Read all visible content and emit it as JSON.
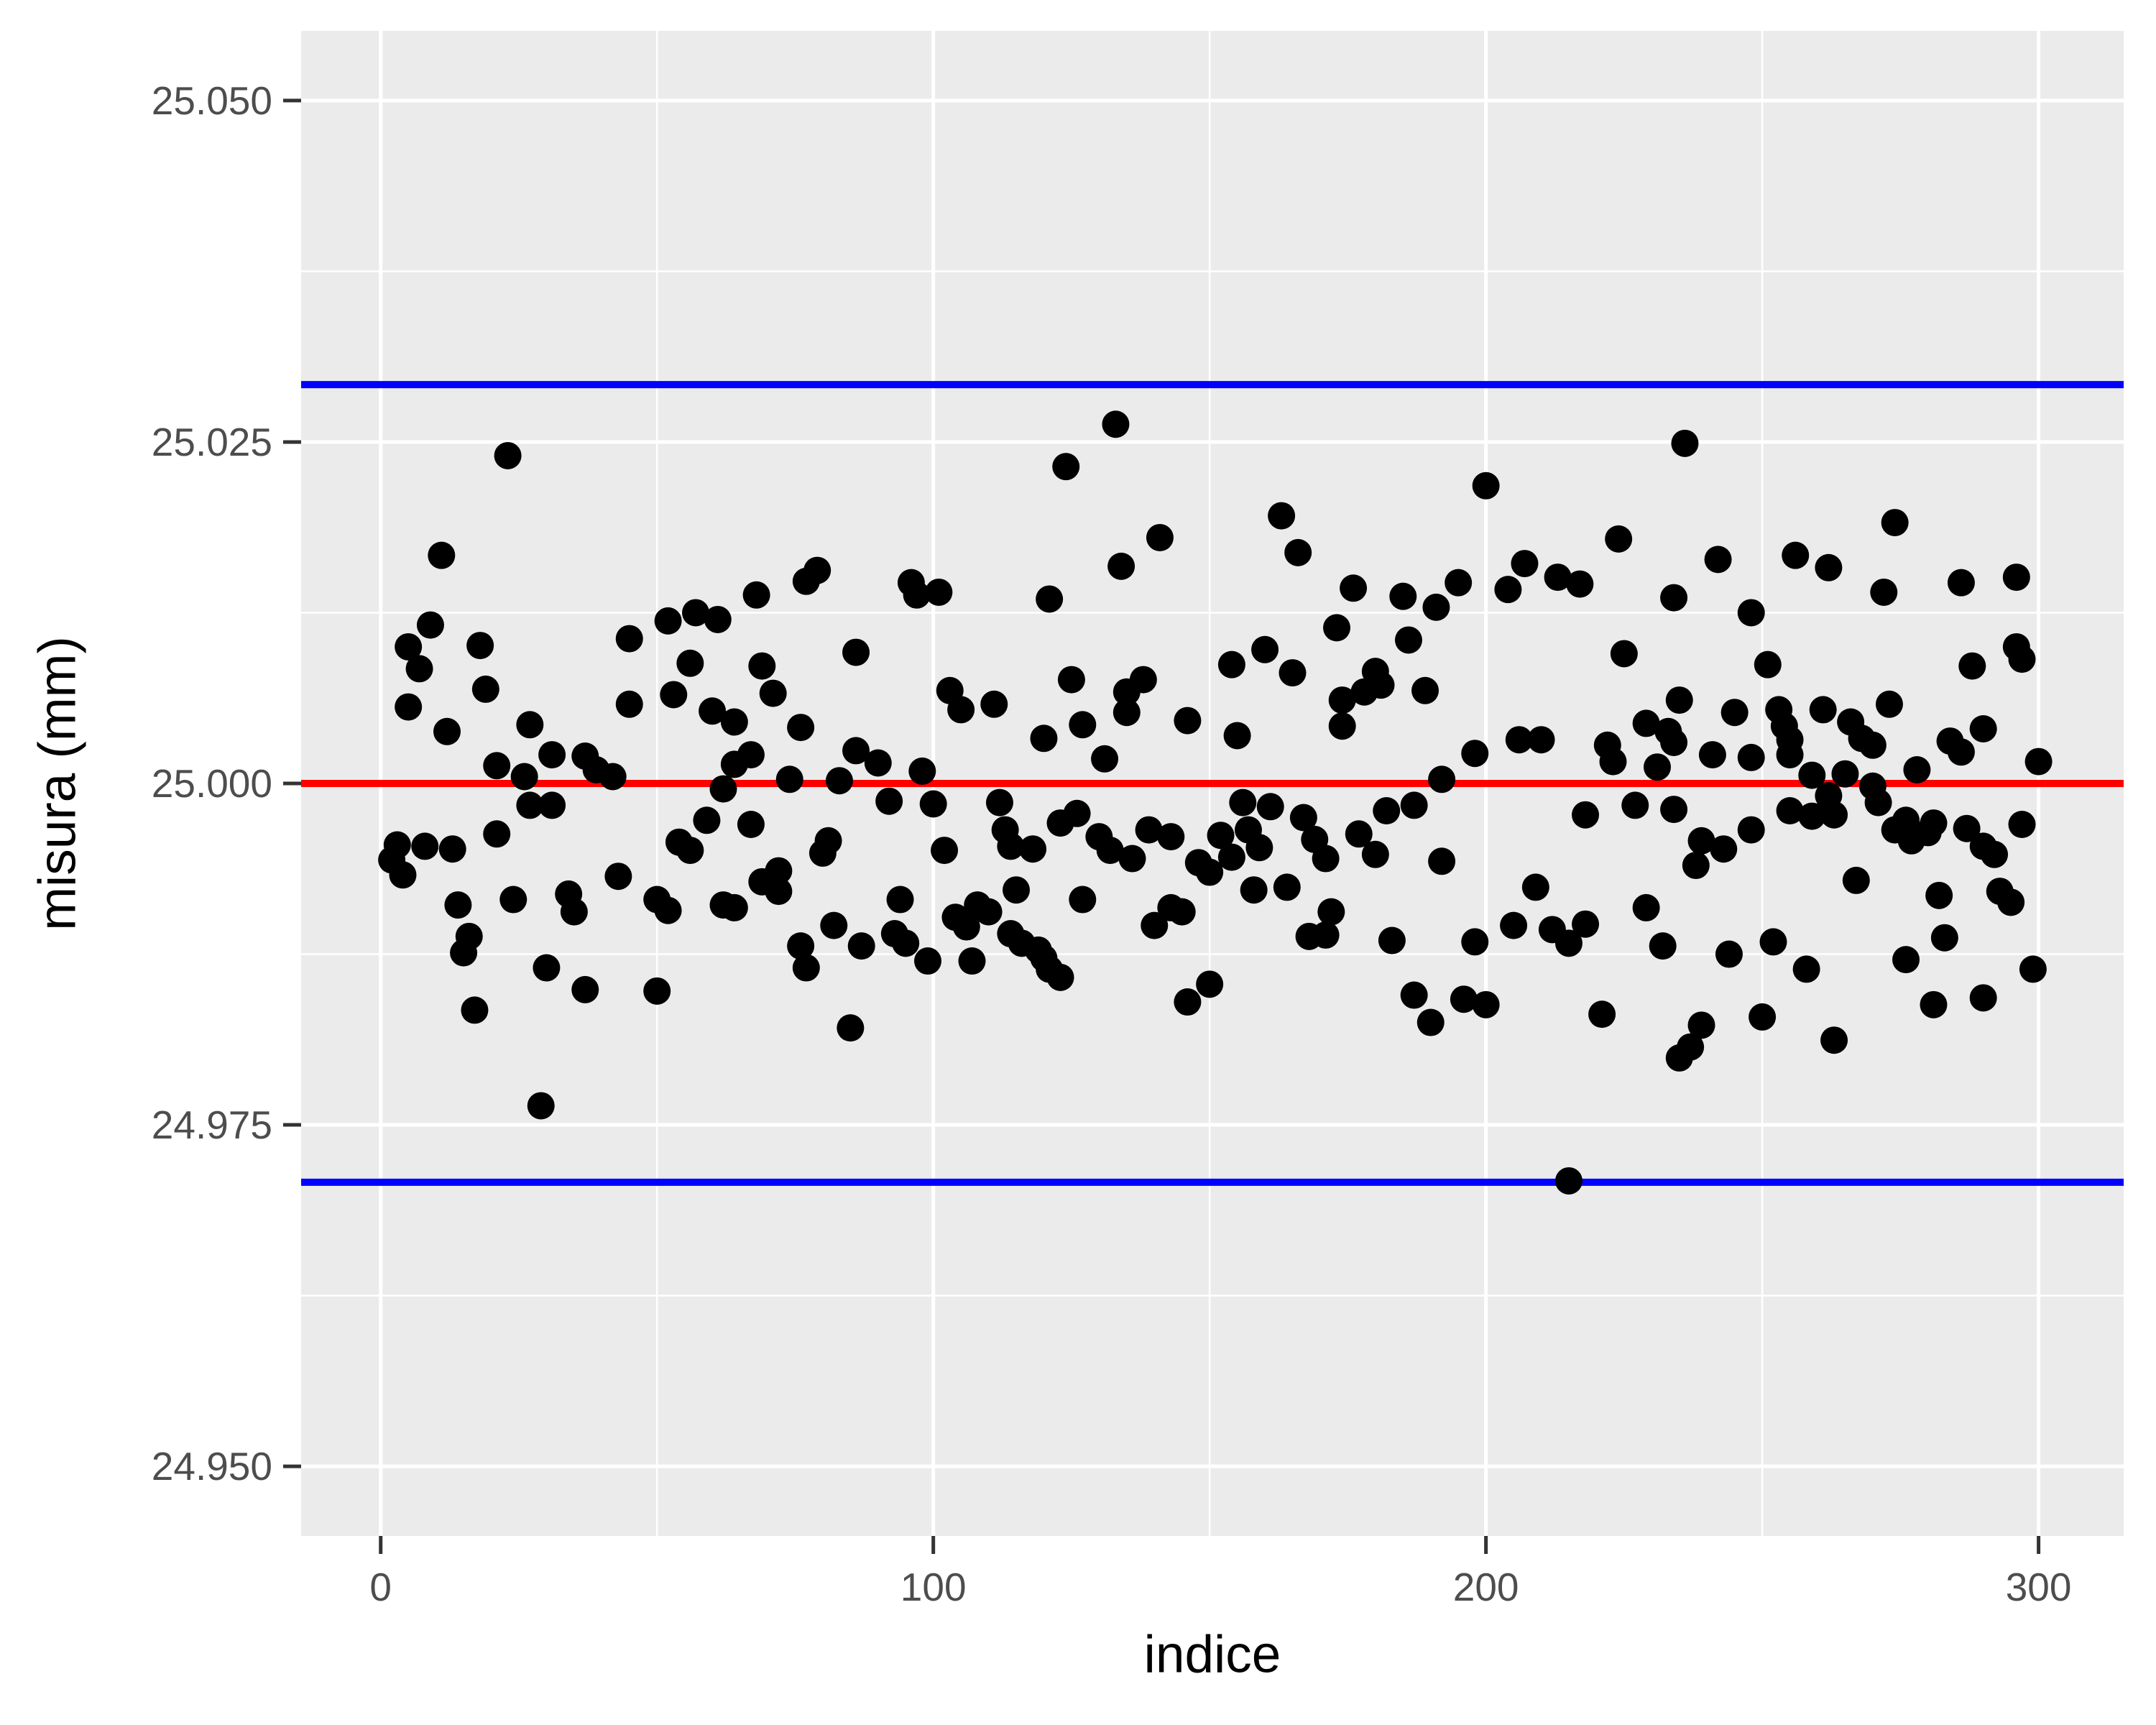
{
  "chart_data": {
    "type": "scatter",
    "title": "",
    "xlabel": "indice",
    "ylabel": "misura (mm)",
    "grid": "on",
    "legend": "none",
    "panel_background": "#EBEBEB",
    "grid_color": "#FFFFFF",
    "tick_color": "#333333",
    "tick_label_color": "#4D4D4D",
    "point_color": "#000000",
    "xlim": [
      -14.4,
      315.4
    ],
    "ylim": [
      24.9449,
      25.0551
    ],
    "x_major_ticks": [
      0,
      100,
      200,
      300
    ],
    "x_major_labels": [
      "0",
      "100",
      "200",
      "300"
    ],
    "x_minor_ticks": [
      50,
      150,
      250
    ],
    "y_major_ticks": [
      24.95,
      24.975,
      25.0,
      25.025,
      25.05
    ],
    "y_major_labels": [
      "24.950",
      "24.975",
      "25.000",
      "25.025",
      "25.050"
    ],
    "y_minor_ticks": [
      24.9625,
      24.9875,
      25.0125,
      25.0375
    ],
    "reference_lines": [
      {
        "name": "center-line",
        "value": 25.0,
        "color": "#FF0000"
      },
      {
        "name": "upper-control-limit",
        "value": 25.0292,
        "color": "#0000FF"
      },
      {
        "name": "lower-control-limit",
        "value": 24.9708,
        "color": "#0000FF"
      }
    ],
    "points": [
      [
        23,
        25.024
      ],
      [
        11,
        25.0167
      ],
      [
        9,
        25.0116
      ],
      [
        5,
        25.01
      ],
      [
        7,
        25.0084
      ],
      [
        18,
        25.0101
      ],
      [
        19,
        25.0069
      ],
      [
        5,
        25.0056
      ],
      [
        12,
        25.0038
      ],
      [
        27,
        25.0043
      ],
      [
        31,
        25.0021
      ],
      [
        37,
        25.002
      ],
      [
        39,
        25.001
      ],
      [
        42,
        25.0005
      ],
      [
        21,
        25.0013
      ],
      [
        26,
        25.0005
      ],
      [
        27,
        24.9984
      ],
      [
        31,
        24.9984
      ],
      [
        45,
        25.0106
      ],
      [
        45,
        25.0058
      ],
      [
        52,
        25.0119
      ],
      [
        57,
        25.0125
      ],
      [
        61,
        25.012
      ],
      [
        56,
        25.0088
      ],
      [
        53,
        25.0065
      ],
      [
        60,
        25.0053
      ],
      [
        64,
        25.0045
      ],
      [
        54,
        24.9957
      ],
      [
        56,
        24.9951
      ],
      [
        59,
        24.9973
      ],
      [
        62,
        24.9996
      ],
      [
        64,
        25.0014
      ],
      [
        67,
        25.0021
      ],
      [
        67,
        24.997
      ],
      [
        69,
        24.9928
      ],
      [
        72,
        24.9936
      ],
      [
        72,
        24.9921
      ],
      [
        74,
        25.0003
      ],
      [
        133,
        25.0263
      ],
      [
        124,
        25.0232
      ],
      [
        141,
        25.018
      ],
      [
        134,
        25.0159
      ],
      [
        79,
        25.0156
      ],
      [
        77,
        25.0148
      ],
      [
        96,
        25.0147
      ],
      [
        97,
        25.0138
      ],
      [
        101,
        25.014
      ],
      [
        121,
        25.0135
      ],
      [
        68,
        25.0138
      ],
      [
        86,
        25.0096
      ],
      [
        69,
        25.0086
      ],
      [
        71,
        25.0066
      ],
      [
        76,
        25.0041
      ],
      [
        103,
        25.0068
      ],
      [
        105,
        25.0054
      ],
      [
        111,
        25.0058
      ],
      [
        125,
        25.0076
      ],
      [
        135,
        25.0067
      ],
      [
        138,
        25.0076
      ],
      [
        135,
        25.0052
      ],
      [
        146,
        25.0046
      ],
      [
        120,
        25.0033
      ],
      [
        127,
        25.0043
      ],
      [
        131,
        25.0018
      ],
      [
        86,
        25.0024
      ],
      [
        90,
        25.0015
      ],
      [
        92,
        24.9987
      ],
      [
        98,
        25.0009
      ],
      [
        83,
        25.0002
      ],
      [
        100,
        24.9985
      ],
      [
        112,
        24.9986
      ],
      [
        123,
        24.9971
      ],
      [
        126,
        24.9978
      ],
      [
        114,
        24.9954
      ],
      [
        200,
        25.0218
      ],
      [
        163,
        25.0196
      ],
      [
        166,
        25.0169
      ],
      [
        224,
        25.0179
      ],
      [
        207,
        25.0161
      ],
      [
        213,
        25.0151
      ],
      [
        217,
        25.0146
      ],
      [
        204,
        25.0142
      ],
      [
        195,
        25.0147
      ],
      [
        176,
        25.0143
      ],
      [
        185,
        25.0137
      ],
      [
        191,
        25.0129
      ],
      [
        234,
        25.0136
      ],
      [
        173,
        25.0114
      ],
      [
        186,
        25.0105
      ],
      [
        160,
        25.0098
      ],
      [
        154,
        25.0087
      ],
      [
        165,
        25.0081
      ],
      [
        180,
        25.0082
      ],
      [
        181,
        25.0072
      ],
      [
        178,
        25.0067
      ],
      [
        174,
        25.0061
      ],
      [
        174,
        25.0042
      ],
      [
        189,
        25.0068
      ],
      [
        225,
        25.0095
      ],
      [
        155,
        25.0035
      ],
      [
        206,
        25.0032
      ],
      [
        210,
        25.0032
      ],
      [
        198,
        25.0022
      ],
      [
        222,
        25.0028
      ],
      [
        223,
        25.0016
      ],
      [
        229,
        25.0044
      ],
      [
        233,
        25.0038
      ],
      [
        234,
        25.003
      ],
      [
        231,
        25.0012
      ],
      [
        192,
        25.0003
      ],
      [
        187,
        24.9984
      ],
      [
        182,
        24.998
      ],
      [
        156,
        24.9986
      ],
      [
        161,
        24.9983
      ],
      [
        167,
        24.9975
      ],
      [
        218,
        24.9977
      ],
      [
        227,
        24.9984
      ],
      [
        234,
        24.9981
      ],
      [
        236,
        25.0249
      ],
      [
        274,
        25.0191
      ],
      [
        242,
        25.0164
      ],
      [
        256,
        25.0167
      ],
      [
        262,
        25.0158
      ],
      [
        272,
        25.014
      ],
      [
        286,
        25.0147
      ],
      [
        296,
        25.0151
      ],
      [
        248,
        25.0125
      ],
      [
        251,
        25.0087
      ],
      [
        296,
        25.01
      ],
      [
        297,
        25.0091
      ],
      [
        288,
        25.0086
      ],
      [
        235,
        25.0061
      ],
      [
        245,
        25.0052
      ],
      [
        253,
        25.0054
      ],
      [
        254,
        25.0042
      ],
      [
        255,
        25.0032
      ],
      [
        261,
        25.0054
      ],
      [
        266,
        25.0045
      ],
      [
        273,
        25.0058
      ],
      [
        268,
        25.0033
      ],
      [
        270,
        25.0028
      ],
      [
        241,
        25.0021
      ],
      [
        248,
        25.0019
      ],
      [
        255,
        25.0021
      ],
      [
        284,
        25.0031
      ],
      [
        286,
        25.0023
      ],
      [
        290,
        25.004
      ],
      [
        300,
        25.0016
      ],
      [
        278,
        25.001
      ],
      [
        259,
        25.0006
      ],
      [
        265,
        25.0007
      ],
      [
        262,
        24.9991
      ],
      [
        270,
        24.9998
      ],
      [
        271,
        24.9986
      ],
      [
        3,
        24.9955
      ],
      [
        8,
        24.9954
      ],
      [
        13,
        24.9952
      ],
      [
        2,
        24.9944
      ],
      [
        21,
        24.9963
      ],
      [
        4,
        24.9933
      ],
      [
        14,
        24.9911
      ],
      [
        24,
        24.9915
      ],
      [
        34,
        24.9919
      ],
      [
        35,
        24.9906
      ],
      [
        43,
        24.9932
      ],
      [
        50,
        24.9915
      ],
      [
        52,
        24.9907
      ],
      [
        62,
        24.9911
      ],
      [
        64,
        24.9909
      ],
      [
        16,
        24.9888
      ],
      [
        15,
        24.9876
      ],
      [
        30,
        24.9865
      ],
      [
        37,
        24.9849
      ],
      [
        50,
        24.9848
      ],
      [
        17,
        24.9834
      ],
      [
        29,
        24.9764
      ],
      [
        80,
        24.9949
      ],
      [
        81,
        24.9958
      ],
      [
        102,
        24.9951
      ],
      [
        113,
        24.9966
      ],
      [
        118,
        24.9952
      ],
      [
        82,
        24.9896
      ],
      [
        76,
        24.9881
      ],
      [
        77,
        24.9865
      ],
      [
        87,
        24.9881
      ],
      [
        94,
        24.9915
      ],
      [
        93,
        24.989
      ],
      [
        95,
        24.9883
      ],
      [
        99,
        24.987
      ],
      [
        104,
        24.9902
      ],
      [
        106,
        24.9895
      ],
      [
        108,
        24.9911
      ],
      [
        110,
        24.9906
      ],
      [
        107,
        24.987
      ],
      [
        115,
        24.9922
      ],
      [
        114,
        24.989
      ],
      [
        116,
        24.9883
      ],
      [
        119,
        24.9878
      ],
      [
        120,
        24.9872
      ],
      [
        121,
        24.9864
      ],
      [
        123,
        24.9858
      ],
      [
        127,
        24.9915
      ],
      [
        130,
        24.9961
      ],
      [
        132,
        24.9951
      ],
      [
        136,
        24.9945
      ],
      [
        139,
        24.9966
      ],
      [
        143,
        24.9961
      ],
      [
        140,
        24.9896
      ],
      [
        143,
        24.9909
      ],
      [
        145,
        24.9906
      ],
      [
        148,
        24.9942
      ],
      [
        150,
        24.9935
      ],
      [
        146,
        24.984
      ],
      [
        150,
        24.9853
      ],
      [
        85,
        24.9821
      ],
      [
        152,
        24.9962
      ],
      [
        154,
        24.9946
      ],
      [
        157,
        24.9966
      ],
      [
        159,
        24.9953
      ],
      [
        158,
        24.9922
      ],
      [
        164,
        24.9924
      ],
      [
        169,
        24.9959
      ],
      [
        171,
        24.9945
      ],
      [
        177,
        24.9963
      ],
      [
        180,
        24.9948
      ],
      [
        192,
        24.9943
      ],
      [
        172,
        24.9906
      ],
      [
        171,
        24.9889
      ],
      [
        168,
        24.9888
      ],
      [
        183,
        24.9885
      ],
      [
        198,
        24.9884
      ],
      [
        205,
        24.9896
      ],
      [
        209,
        24.9924
      ],
      [
        212,
        24.9893
      ],
      [
        215,
        24.9883
      ],
      [
        218,
        24.9897
      ],
      [
        229,
        24.9909
      ],
      [
        232,
        24.9881
      ],
      [
        187,
        24.9845
      ],
      [
        190,
        24.9825
      ],
      [
        196,
        24.9842
      ],
      [
        200,
        24.9838
      ],
      [
        221,
        24.9831
      ],
      [
        235,
        24.9799
      ],
      [
        215,
        24.9709
      ],
      [
        239,
        24.9958
      ],
      [
        243,
        24.9952
      ],
      [
        238,
        24.994
      ],
      [
        248,
        24.9966
      ],
      [
        255,
        24.998
      ],
      [
        259,
        24.9976
      ],
      [
        263,
        24.9977
      ],
      [
        274,
        24.9966
      ],
      [
        277,
        24.9958
      ],
      [
        280,
        24.9964
      ],
      [
        276,
        24.9973
      ],
      [
        281,
        24.9971
      ],
      [
        287,
        24.9967
      ],
      [
        290,
        24.9954
      ],
      [
        292,
        24.9948
      ],
      [
        297,
        24.997
      ],
      [
        267,
        24.9929
      ],
      [
        282,
        24.9918
      ],
      [
        293,
        24.9921
      ],
      [
        295,
        24.9913
      ],
      [
        244,
        24.9875
      ],
      [
        252,
        24.9884
      ],
      [
        258,
        24.9864
      ],
      [
        276,
        24.9871
      ],
      [
        283,
        24.9887
      ],
      [
        299,
        24.9864
      ],
      [
        281,
        24.9838
      ],
      [
        290,
        24.9843
      ],
      [
        239,
        24.9823
      ],
      [
        237,
        24.9807
      ],
      [
        250,
        24.9829
      ],
      [
        263,
        24.9812
      ]
    ]
  }
}
